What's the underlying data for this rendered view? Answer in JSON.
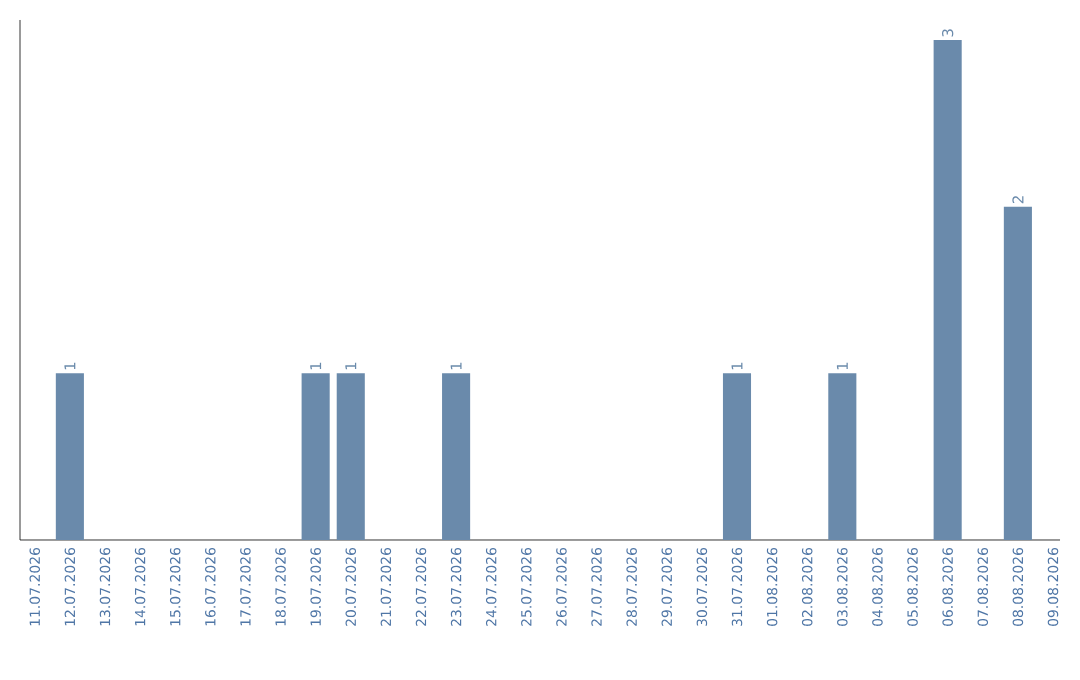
{
  "chart_data": {
    "type": "bar",
    "categories": [
      "11.07.2026",
      "12.07.2026",
      "13.07.2026",
      "14.07.2026",
      "15.07.2026",
      "16.07.2026",
      "17.07.2026",
      "18.07.2026",
      "19.07.2026",
      "20.07.2026",
      "21.07.2026",
      "22.07.2026",
      "23.07.2026",
      "24.07.2026",
      "25.07.2026",
      "26.07.2026",
      "27.07.2026",
      "28.07.2026",
      "29.07.2026",
      "30.07.2026",
      "31.07.2026",
      "01.08.2026",
      "02.08.2026",
      "03.08.2026",
      "04.08.2026",
      "05.08.2026",
      "06.08.2026",
      "07.08.2026",
      "08.08.2026",
      "09.08.2026"
    ],
    "values": [
      null,
      1,
      null,
      null,
      null,
      null,
      null,
      null,
      1,
      1,
      null,
      null,
      1,
      null,
      null,
      null,
      null,
      null,
      null,
      null,
      1,
      null,
      null,
      1,
      null,
      null,
      3,
      null,
      2,
      null
    ],
    "color": "#6a8aab",
    "ylim": [
      0,
      3.12
    ],
    "data_labels": true,
    "tick_labels": "x"
  }
}
